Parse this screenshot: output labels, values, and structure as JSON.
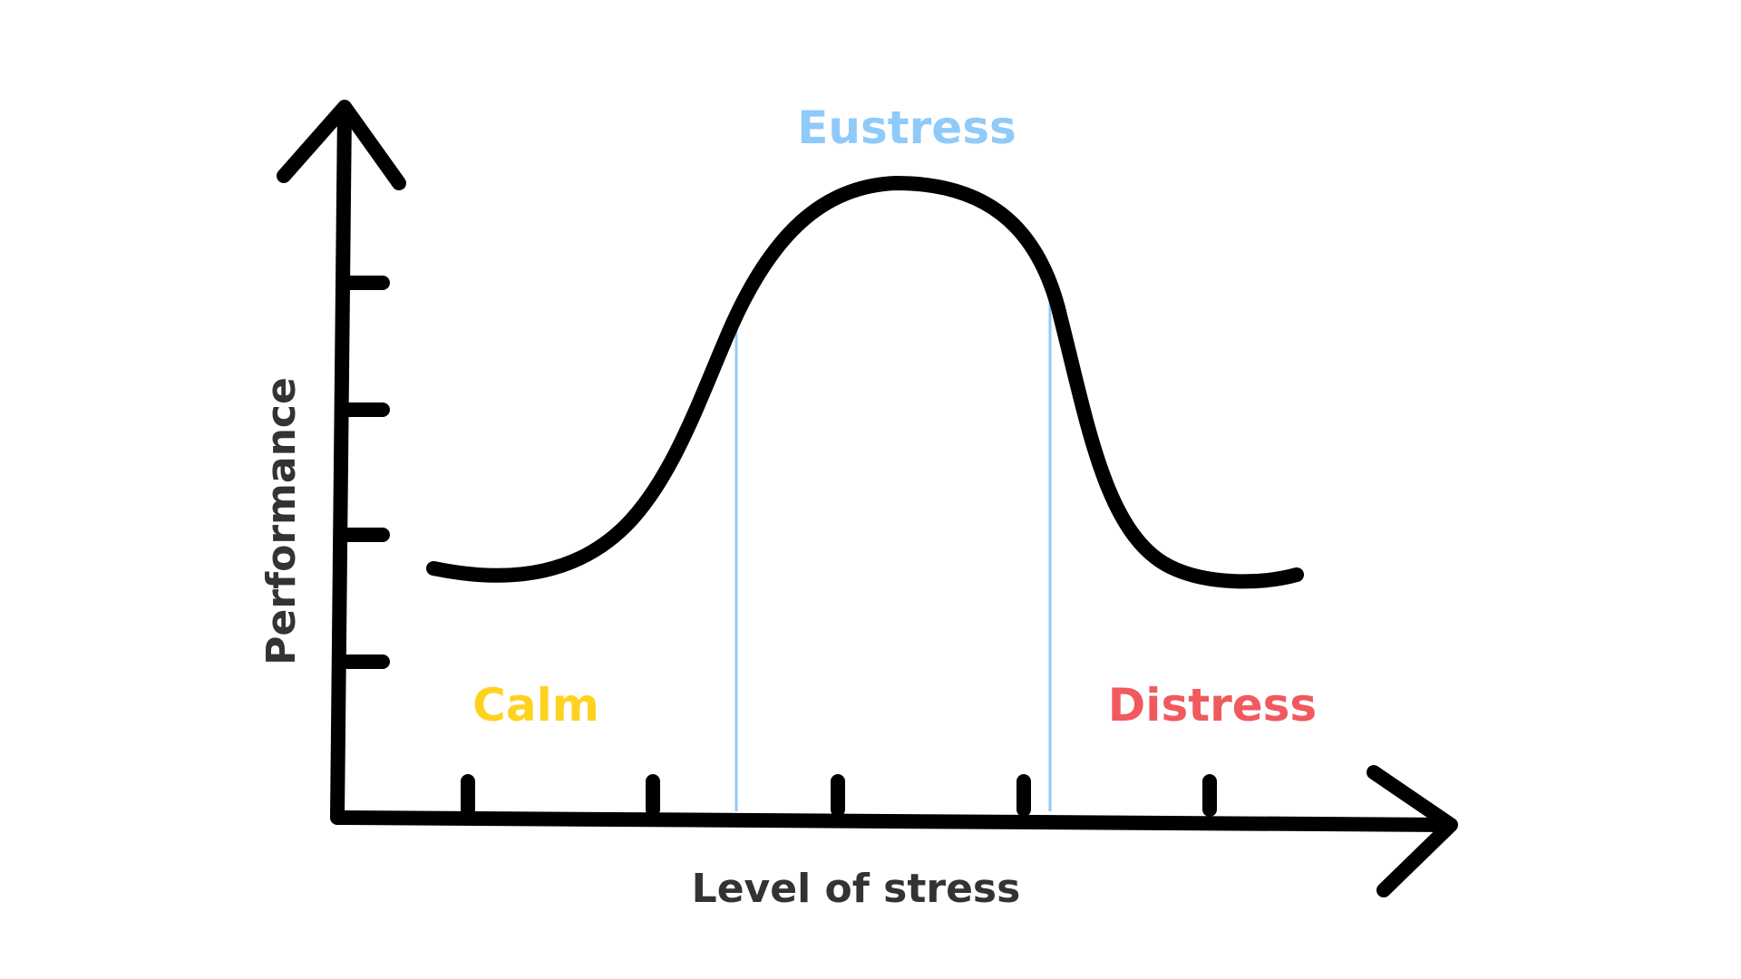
{
  "diagram": {
    "y_axis_label": "Performance",
    "x_axis_label": "Level of stress",
    "zones": [
      {
        "label": "Calm",
        "color": "#FFD21F"
      },
      {
        "label": "Eustress",
        "color": "#90CAF9"
      },
      {
        "label": "Distress",
        "color": "#F05A5F"
      }
    ],
    "curve_color": "#000000",
    "axis_color": "#000000",
    "divider_color": "#90CAF9",
    "axis_label_color": "#333333"
  }
}
